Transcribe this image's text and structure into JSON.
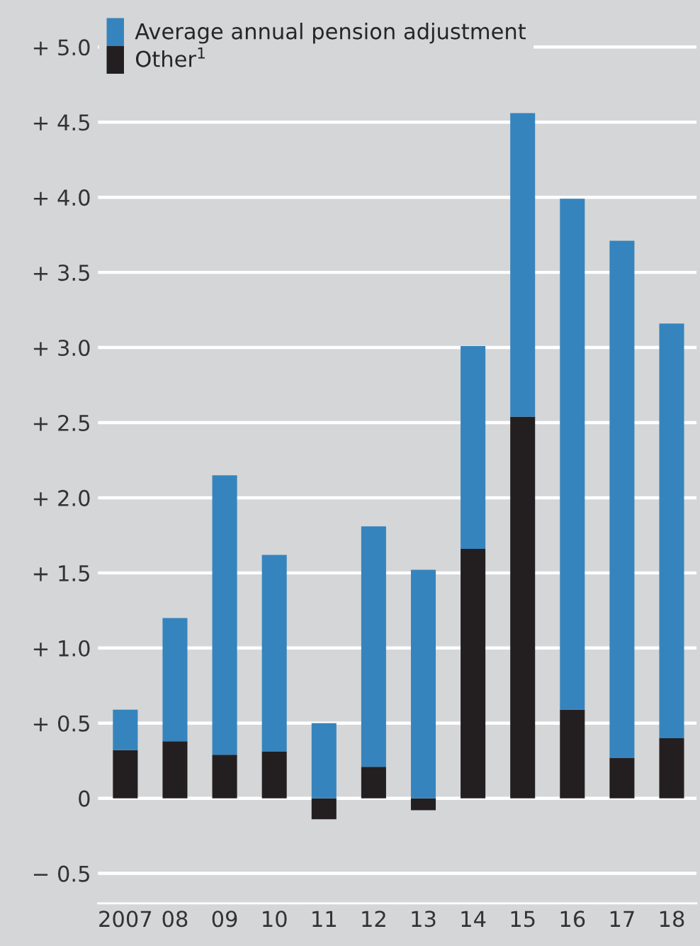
{
  "chart_data": {
    "type": "bar",
    "stacked": true,
    "categories": [
      "2007",
      "08",
      "09",
      "10",
      "11",
      "12",
      "13",
      "14",
      "15",
      "16",
      "17",
      "18"
    ],
    "series": [
      {
        "name": "Other$^{1}$",
        "color": "#231f20",
        "values": [
          0.32,
          0.38,
          0.29,
          0.31,
          -0.14,
          0.21,
          -0.08,
          1.66,
          2.54,
          0.59,
          0.27,
          0.4
        ]
      },
      {
        "name": "Average annual pension adjustment",
        "color": "#3584bd",
        "values": [
          0.27,
          0.82,
          1.86,
          1.31,
          0.5,
          1.6,
          1.52,
          1.35,
          2.02,
          3.4,
          3.44,
          2.76
        ]
      }
    ],
    "ylim": [
      -0.7,
      5.25
    ],
    "yticks": [
      {
        "value": -0.5,
        "label": "− 0.5"
      },
      0,
      {
        "value": 0.5,
        "label": "+ 0.5"
      },
      {
        "value": 1.0,
        "label": "+ 1.0"
      },
      {
        "value": 1.5,
        "label": "+ 1.5"
      },
      {
        "value": 2.0,
        "label": "+ 2.0"
      },
      {
        "value": 2.5,
        "label": "+ 2.5"
      },
      {
        "value": 3.0,
        "label": "+ 3.0"
      },
      {
        "value": 3.5,
        "label": "+ 3.5"
      },
      {
        "value": 4.0,
        "label": "+ 4.0"
      },
      {
        "value": 4.5,
        "label": "+ 4.5"
      },
      {
        "value": 5.0,
        "label": "+ 5.0"
      }
    ],
    "grid": "y",
    "legend": "top left"
  }
}
